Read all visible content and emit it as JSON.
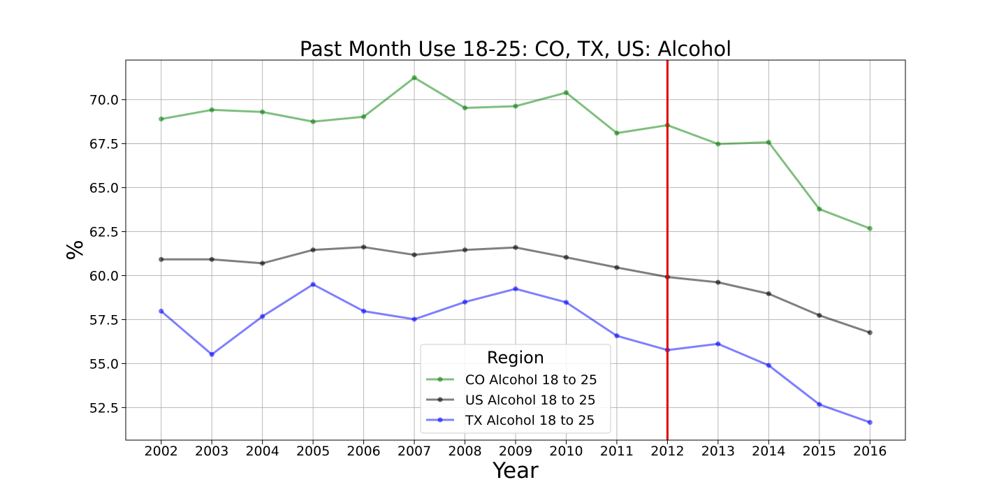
{
  "chart_data": {
    "type": "line",
    "title": "Past Month Use 18-25: CO, TX, US: Alcohol",
    "xlabel": "Year",
    "ylabel": "%",
    "x": [
      2002,
      2003,
      2004,
      2005,
      2006,
      2007,
      2008,
      2009,
      2010,
      2011,
      2012,
      2013,
      2014,
      2015,
      2016
    ],
    "x_tick_labels": [
      "2002",
      "2003",
      "2004",
      "2005",
      "2006",
      "2007",
      "2008",
      "2009",
      "2010",
      "2011",
      "2012",
      "2013",
      "2014",
      "2015",
      "2016"
    ],
    "y_tick_labels": [
      "52.5",
      "55.0",
      "57.5",
      "60.0",
      "62.5",
      "65.0",
      "67.5",
      "70.0"
    ],
    "y_ticks": [
      52.5,
      55.0,
      57.5,
      60.0,
      62.5,
      65.0,
      67.5,
      70.0
    ],
    "xlim": [
      2001.3,
      2016.7
    ],
    "ylim": [
      50.65,
      72.25
    ],
    "grid": true,
    "series": [
      {
        "name": "CO Alcohol 18 to 25",
        "color": "#008000",
        "values": [
          68.9,
          69.42,
          69.3,
          68.75,
          69.03,
          71.25,
          69.53,
          69.63,
          70.4,
          68.1,
          68.55,
          67.48,
          67.58,
          63.78,
          62.68
        ]
      },
      {
        "name": "US Alcohol 18 to 25",
        "color": "#000000",
        "values": [
          60.92,
          60.92,
          60.7,
          61.46,
          61.62,
          61.18,
          61.46,
          61.6,
          61.04,
          60.46,
          59.92,
          59.62,
          58.97,
          57.74,
          56.76
        ]
      },
      {
        "name": "TX Alcohol 18 to 25",
        "color": "#0000ff",
        "values": [
          57.98,
          55.52,
          57.68,
          59.5,
          57.98,
          57.52,
          58.5,
          59.25,
          58.48,
          56.58,
          55.77,
          56.12,
          54.9,
          52.68,
          51.66
        ]
      }
    ],
    "vertical_line": {
      "x": 2012,
      "color": "#e00000"
    },
    "legend": {
      "title": "Region",
      "placement": "lower-center"
    }
  }
}
